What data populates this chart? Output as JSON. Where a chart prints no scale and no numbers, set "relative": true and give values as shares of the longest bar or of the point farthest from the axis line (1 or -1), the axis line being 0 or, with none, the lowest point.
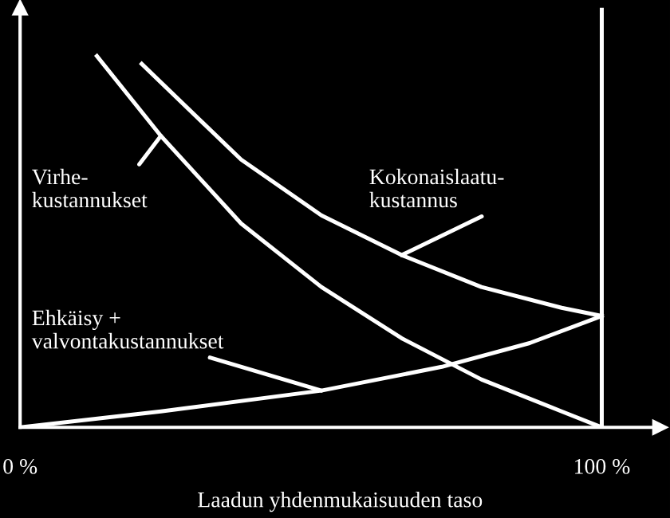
{
  "chart_data": {
    "type": "line",
    "relative": true,
    "xlabel": "Laadun yhdenmukaisuuden taso",
    "xlim": [
      0,
      110
    ],
    "xticks": [
      {
        "value": 0,
        "label": "0 %"
      },
      {
        "value": 100,
        "label": "100 %"
      }
    ],
    "grid": false,
    "marker": "none",
    "line_style": "solid",
    "ref_lines": [
      {
        "axis": "x",
        "value": 100,
        "color": "#ffffff"
      }
    ],
    "series": [
      {
        "name": "Virhe-\nkustannukset",
        "color": "#ffffff",
        "x": [
          13.2,
          24.2,
          38,
          51.8,
          65.6,
          79.3,
          93.1,
          100
        ],
        "values": [
          1.0,
          0.785,
          0.549,
          0.378,
          0.24,
          0.129,
          0.043,
          0
        ]
      },
      {
        "name": "Kokonaislaatu-\nkustannus",
        "color": "#ffffff",
        "x": [
          20.9,
          38,
          51.8,
          65.6,
          79.3,
          93.1,
          100
        ],
        "values": [
          0.979,
          0.721,
          0.571,
          0.464,
          0.378,
          0.322,
          0.3
        ]
      },
      {
        "name": "Ehkäisy +\nvalvontakustannukset",
        "color": "#ffffff",
        "x": [
          0,
          24.2,
          51.8,
          72.5,
          87.6,
          100
        ],
        "values": [
          0,
          0.043,
          0.099,
          0.163,
          0.227,
          0.3
        ]
      }
    ]
  }
}
